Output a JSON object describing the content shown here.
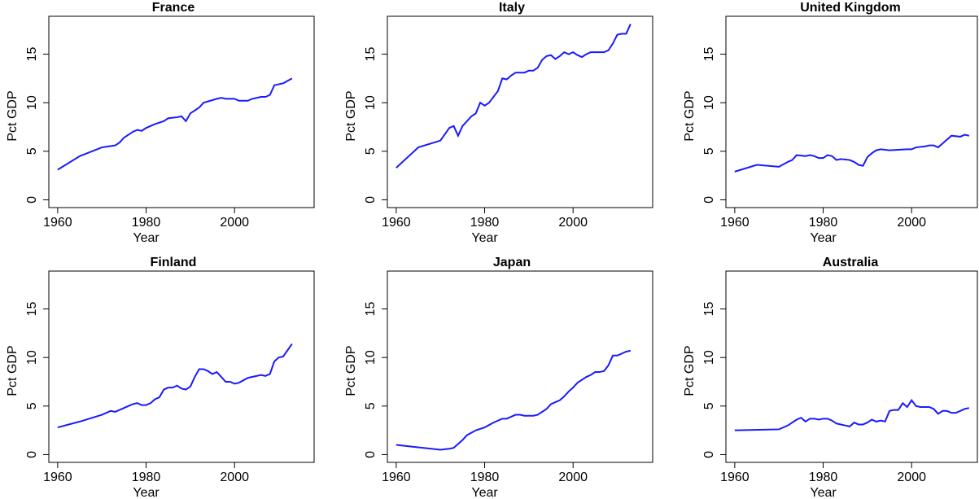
{
  "chart_data": [
    {
      "type": "line",
      "title": "France",
      "xlabel": "Year",
      "ylabel": "Pct GDP",
      "color": "#1a1aff",
      "x": [
        1960,
        1965,
        1970,
        1973,
        1974,
        1975,
        1977,
        1978,
        1979,
        1980,
        1982,
        1984,
        1985,
        1987,
        1988,
        1989,
        1990,
        1992,
        1993,
        1996,
        1997,
        1998,
        2000,
        2001,
        2003,
        2004,
        2006,
        2007,
        2008,
        2009,
        2011,
        2013
      ],
      "values": [
        3.1,
        4.5,
        5.4,
        5.6,
        5.9,
        6.4,
        7.0,
        7.2,
        7.1,
        7.4,
        7.8,
        8.1,
        8.4,
        8.5,
        8.6,
        8.1,
        8.9,
        9.5,
        10.0,
        10.4,
        10.5,
        10.4,
        10.4,
        10.2,
        10.2,
        10.4,
        10.6,
        10.6,
        10.8,
        11.8,
        12.0,
        12.5
      ],
      "xlim": [
        1958,
        2018
      ],
      "ylim": [
        -0.8,
        18.9
      ],
      "xticks": [
        1960,
        1980,
        2000
      ],
      "yticks": [
        0,
        5,
        10,
        15
      ]
    },
    {
      "type": "line",
      "title": "Italy",
      "xlabel": "Year",
      "ylabel": "Pct GDP",
      "color": "#1a1aff",
      "x": [
        1960,
        1965,
        1970,
        1972,
        1973,
        1974,
        1975,
        1977,
        1978,
        1979,
        1980,
        1981,
        1983,
        1984,
        1985,
        1986,
        1987,
        1989,
        1990,
        1991,
        1992,
        1993,
        1994,
        1995,
        1996,
        1997,
        1998,
        1999,
        2000,
        2001,
        2002,
        2003,
        2004,
        2007,
        2008,
        2009,
        2010,
        2011,
        2012,
        2013
      ],
      "values": [
        3.3,
        5.4,
        6.1,
        7.4,
        7.6,
        6.6,
        7.6,
        8.6,
        8.9,
        10.0,
        9.7,
        10.0,
        11.2,
        12.5,
        12.4,
        12.8,
        13.1,
        13.1,
        13.3,
        13.3,
        13.6,
        14.4,
        14.8,
        14.9,
        14.5,
        14.8,
        15.2,
        15.0,
        15.2,
        14.9,
        14.7,
        15.0,
        15.2,
        15.2,
        15.4,
        16.1,
        17.0,
        17.1,
        17.1,
        18.1
      ],
      "xlim": [
        1958,
        2018
      ],
      "ylim": [
        -0.8,
        18.9
      ],
      "xticks": [
        1960,
        1980,
        2000
      ],
      "yticks": [
        0,
        5,
        10,
        15
      ]
    },
    {
      "type": "line",
      "title": "United Kingdom",
      "xlabel": "Year",
      "ylabel": "Pct GDP",
      "color": "#1a1aff",
      "x": [
        1960,
        1965,
        1970,
        1972,
        1973,
        1974,
        1976,
        1977,
        1978,
        1979,
        1980,
        1981,
        1982,
        1983,
        1984,
        1986,
        1987,
        1988,
        1989,
        1990,
        1991,
        1992,
        1993,
        1995,
        1999,
        2000,
        2001,
        2003,
        2004,
        2005,
        2006,
        2007,
        2008,
        2009,
        2011,
        2012,
        2013
      ],
      "values": [
        2.9,
        3.6,
        3.4,
        3.9,
        4.1,
        4.6,
        4.5,
        4.6,
        4.5,
        4.3,
        4.3,
        4.6,
        4.5,
        4.1,
        4.2,
        4.1,
        3.9,
        3.6,
        3.5,
        4.4,
        4.8,
        5.1,
        5.2,
        5.1,
        5.2,
        5.2,
        5.4,
        5.5,
        5.6,
        5.6,
        5.4,
        5.8,
        6.2,
        6.6,
        6.5,
        6.7,
        6.6
      ],
      "xlim": [
        1958,
        2018
      ],
      "ylim": [
        -0.8,
        18.9
      ],
      "xticks": [
        1960,
        1980,
        2000
      ],
      "yticks": [
        0,
        5,
        10,
        15
      ]
    },
    {
      "type": "line",
      "title": "Finland",
      "xlabel": "Year",
      "ylabel": "Pct GDP",
      "color": "#1a1aff",
      "x": [
        1960,
        1965,
        1970,
        1972,
        1973,
        1975,
        1977,
        1978,
        1979,
        1980,
        1981,
        1982,
        1983,
        1984,
        1985,
        1986,
        1987,
        1988,
        1989,
        1990,
        1991,
        1992,
        1993,
        1994,
        1995,
        1996,
        1997,
        1998,
        1999,
        2000,
        2001,
        2003,
        2004,
        2006,
        2007,
        2008,
        2009,
        2010,
        2011,
        2013
      ],
      "values": [
        2.8,
        3.4,
        4.1,
        4.5,
        4.4,
        4.8,
        5.2,
        5.3,
        5.1,
        5.1,
        5.3,
        5.7,
        5.9,
        6.7,
        6.9,
        6.9,
        7.1,
        6.8,
        6.7,
        7.0,
        8.0,
        8.8,
        8.8,
        8.6,
        8.3,
        8.5,
        8.0,
        7.5,
        7.5,
        7.3,
        7.4,
        7.9,
        8.0,
        8.2,
        8.1,
        8.3,
        9.6,
        10.0,
        10.1,
        11.4
      ],
      "xlim": [
        1958,
        2018
      ],
      "ylim": [
        -0.8,
        18.9
      ],
      "xticks": [
        1960,
        1980,
        2000
      ],
      "yticks": [
        0,
        5,
        10,
        15
      ]
    },
    {
      "type": "line",
      "title": "Japan",
      "xlabel": "Year",
      "ylabel": "Pct GDP",
      "color": "#1a1aff",
      "x": [
        1960,
        1970,
        1972,
        1973,
        1974,
        1975,
        1976,
        1978,
        1980,
        1982,
        1984,
        1985,
        1986,
        1987,
        1988,
        1989,
        1991,
        1992,
        1994,
        1995,
        1997,
        1998,
        1999,
        2000,
        2001,
        2003,
        2004,
        2005,
        2006,
        2007,
        2008,
        2009,
        2010,
        2011,
        2012,
        2013
      ],
      "values": [
        1.0,
        0.5,
        0.6,
        0.7,
        1.1,
        1.5,
        2.0,
        2.5,
        2.8,
        3.3,
        3.7,
        3.7,
        3.9,
        4.1,
        4.1,
        4.0,
        4.0,
        4.1,
        4.7,
        5.2,
        5.6,
        6.0,
        6.5,
        6.9,
        7.4,
        8.0,
        8.2,
        8.5,
        8.5,
        8.6,
        9.2,
        10.2,
        10.2,
        10.4,
        10.6,
        10.7
      ],
      "xlim": [
        1958,
        2018
      ],
      "ylim": [
        -0.8,
        18.9
      ],
      "xticks": [
        1960,
        1980,
        2000
      ],
      "yticks": [
        0,
        5,
        10,
        15
      ]
    },
    {
      "type": "line",
      "title": "Australia",
      "xlabel": "Year",
      "ylabel": "Pct GDP",
      "color": "#1a1aff",
      "x": [
        1960,
        1970,
        1972,
        1974,
        1975,
        1976,
        1977,
        1978,
        1979,
        1980,
        1981,
        1982,
        1983,
        1985,
        1986,
        1987,
        1988,
        1989,
        1990,
        1991,
        1992,
        1993,
        1994,
        1995,
        1996,
        1997,
        1998,
        1999,
        2000,
        2001,
        2002,
        2004,
        2005,
        2006,
        2007,
        2008,
        2009,
        2010,
        2011,
        2012,
        2013
      ],
      "values": [
        2.5,
        2.6,
        3.0,
        3.6,
        3.8,
        3.4,
        3.7,
        3.7,
        3.6,
        3.7,
        3.7,
        3.5,
        3.2,
        3.0,
        2.9,
        3.3,
        3.1,
        3.1,
        3.3,
        3.6,
        3.4,
        3.5,
        3.4,
        4.5,
        4.6,
        4.6,
        5.3,
        4.9,
        5.6,
        5.0,
        4.9,
        4.9,
        4.7,
        4.2,
        4.5,
        4.5,
        4.3,
        4.3,
        4.5,
        4.7,
        4.8
      ],
      "xlim": [
        1958,
        2018
      ],
      "ylim": [
        -0.8,
        18.9
      ],
      "xticks": [
        1960,
        1980,
        2000
      ],
      "yticks": [
        0,
        5,
        10,
        15
      ]
    }
  ]
}
